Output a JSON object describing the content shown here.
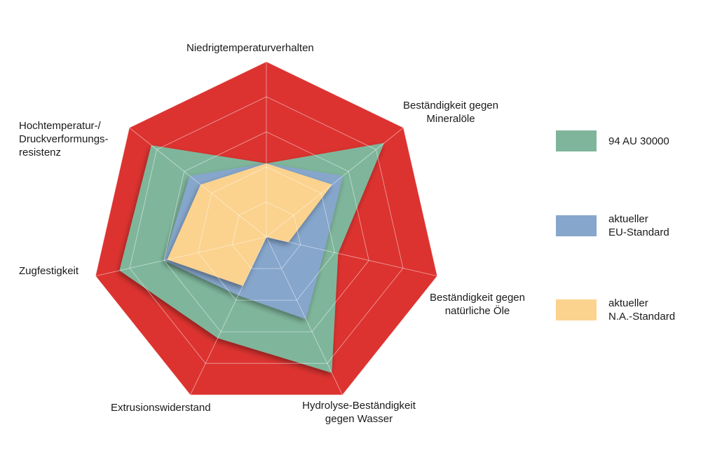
{
  "chart_data": {
    "type": "radar",
    "axes": [
      "Niedrigtemperaturverhalten",
      "Beständigkeit gegen\nMineralöle",
      "Beständigkeit gegen\nnatürliche Öle",
      "Hydrolyse-Beständigkeit\ngegen Wasser",
      "Extrusionswiderstand",
      "Zugfestigkeit",
      "Hochtemperatur-/\nDruckverformungs-\nresistenz"
    ],
    "rmax": 5,
    "grid_levels": 5,
    "outer_band": {
      "value": 5,
      "color": "#dc3330"
    },
    "series": [
      {
        "name": "94 AU 30000",
        "color": "#7fb69b",
        "values": [
          2.1,
          4.3,
          2.1,
          4.3,
          3.2,
          4.3,
          4.2
        ]
      },
      {
        "name": "aktueller\nEU-Standard",
        "color": "#86a6cc",
        "values": [
          2.1,
          2.8,
          1.7,
          2.6,
          1.85,
          3.0,
          2.8
        ]
      },
      {
        "name": "aktueller\nN.A.-Standard",
        "color": "#fbd28e",
        "values": [
          2.1,
          2.4,
          0.65,
          0.0,
          1.55,
          2.9,
          2.4
        ]
      }
    ]
  }
}
